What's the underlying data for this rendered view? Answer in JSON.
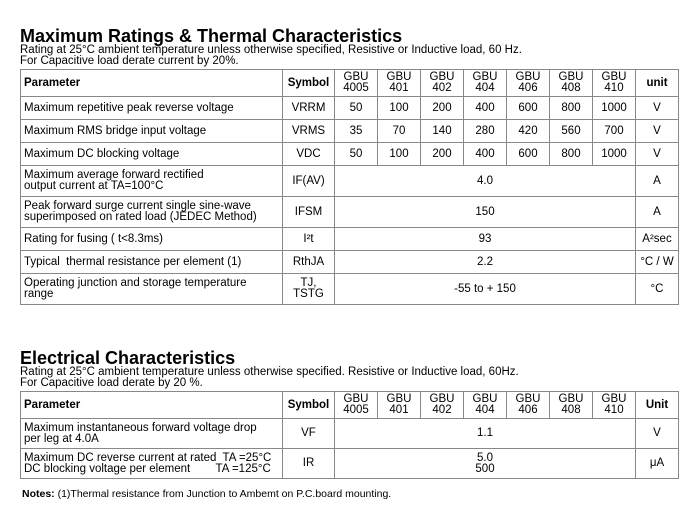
{
  "ratings": {
    "title": "Maximum Ratings & Thermal Characteristics",
    "notes": [
      "Rating at 25°C ambient temperature unless otherwise specified, Resistive or Inductive load, 60 Hz.",
      "For Capacitive load derate current by 20%."
    ],
    "header": {
      "parameter": "Parameter",
      "symbol": "Symbol",
      "models": [
        [
          "GBU",
          "4005"
        ],
        [
          "GBU",
          "401"
        ],
        [
          "GBU",
          "402"
        ],
        [
          "GBU",
          "404"
        ],
        [
          "GBU",
          "406"
        ],
        [
          "GBU",
          "408"
        ],
        [
          "GBU",
          "410"
        ]
      ],
      "unit": "unit"
    },
    "rows": [
      {
        "parameter": [
          "Maximum repetitive peak reverse voltage"
        ],
        "symbol": [
          "VRRM"
        ],
        "values": [
          50,
          100,
          200,
          400,
          600,
          800,
          1000
        ],
        "unit": "V"
      },
      {
        "parameter": [
          "Maximum RMS bridge input voltage"
        ],
        "symbol": [
          "VRMS"
        ],
        "values": [
          35,
          70,
          140,
          280,
          420,
          560,
          700
        ],
        "unit": "V"
      },
      {
        "parameter": [
          "Maximum DC blocking voltage"
        ],
        "symbol": [
          "VDC"
        ],
        "values": [
          50,
          100,
          200,
          400,
          600,
          800,
          1000
        ],
        "unit": "V"
      },
      {
        "parameter": [
          "Maximum average forward rectified",
          "output current at TA=100°C"
        ],
        "symbol": [
          "IF(AV)"
        ],
        "value": [
          "4.0"
        ],
        "unit": "A"
      },
      {
        "parameter": [
          "Peak forward surge current single sine-wave",
          "superimposed on rated load (JEDEC Method)"
        ],
        "symbol": [
          "IFSM"
        ],
        "value": [
          "150"
        ],
        "unit": "A"
      },
      {
        "parameter": [
          "Rating for fusing ( t<8.3ms)"
        ],
        "symbol": [
          "I²t"
        ],
        "value": [
          "93"
        ],
        "unit": "A²sec"
      },
      {
        "parameter": [
          "Typical  thermal resistance per element (1)"
        ],
        "symbol": [
          "RthJA"
        ],
        "value": [
          "2.2"
        ],
        "unit": "°C / W"
      },
      {
        "parameter": [
          "Operating junction and storage temperature",
          "range"
        ],
        "symbol": [
          "TJ,",
          "TSTG"
        ],
        "value": [
          "-55 to + 150"
        ],
        "unit": "°C"
      }
    ]
  },
  "electrical": {
    "title": "Electrical Characteristics",
    "notes": [
      "Rating at 25°C ambient temperature unless otherwise specified. Resistive or Inductive load, 60Hz.",
      "For Capacitive load derate by 20 %."
    ],
    "header": {
      "parameter": "Parameter",
      "symbol": "Symbol",
      "models": [
        [
          "GBU",
          "4005"
        ],
        [
          "GBU",
          "401"
        ],
        [
          "GBU",
          "402"
        ],
        [
          "GBU",
          "404"
        ],
        [
          "GBU",
          "406"
        ],
        [
          "GBU",
          "408"
        ],
        [
          "GBU",
          "410"
        ]
      ],
      "unit": "Unit"
    },
    "rows": [
      {
        "parameter": [
          "Maximum instantaneous forward voltage drop",
          "per leg at 4.0A"
        ],
        "symbol": [
          "VF"
        ],
        "value": [
          "1.1"
        ],
        "unit": "V"
      },
      {
        "parameter": [
          "Maximum DC reverse current at rated  TA =25°C",
          "DC blocking voltage per element        TA =125°C"
        ],
        "symbol": [
          "IR"
        ],
        "value": [
          "5.0",
          "500"
        ],
        "unit": "μA"
      }
    ]
  },
  "footnote": {
    "label": "Notes:",
    "text": " (1)Thermal resistance from Junction to Ambemt on P.C.board mounting."
  }
}
